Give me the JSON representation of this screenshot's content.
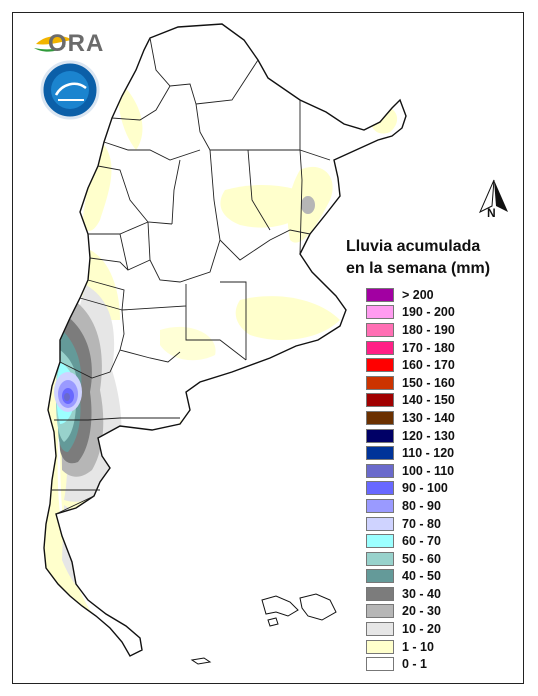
{
  "logo": {
    "text": "ORA"
  },
  "north_label": "N",
  "legend": {
    "title_line1": "Lluvia acumulada",
    "title_line2": "en la semana (mm)",
    "items": [
      {
        "label": "> 200",
        "color": "#a200a2"
      },
      {
        "label": "190 - 200",
        "color": "#ff9cf0"
      },
      {
        "label": "180 - 190",
        "color": "#ff6fb4"
      },
      {
        "label": "170 - 180",
        "color": "#ff1f86"
      },
      {
        "label": "160 - 170",
        "color": "#ff0000"
      },
      {
        "label": "150 - 160",
        "color": "#cc3300"
      },
      {
        "label": "140 - 150",
        "color": "#a10000"
      },
      {
        "label": "130 - 140",
        "color": "#6b3000"
      },
      {
        "label": "120 - 130",
        "color": "#000066"
      },
      {
        "label": "110 - 120",
        "color": "#003399"
      },
      {
        "label": "100 - 110",
        "color": "#6a6acc"
      },
      {
        "label": "90 - 100",
        "color": "#6868ff"
      },
      {
        "label": "80 - 90",
        "color": "#9a9aff"
      },
      {
        "label": "70 - 80",
        "color": "#cfd3ff"
      },
      {
        "label": "60 - 70",
        "color": "#9cffff"
      },
      {
        "label": "50 - 60",
        "color": "#98d2cc"
      },
      {
        "label": "40 - 50",
        "color": "#649a99"
      },
      {
        "label": "30 - 40",
        "color": "#7c7c7c"
      },
      {
        "label": "20 - 30",
        "color": "#b6b6b6"
      },
      {
        "label": "10 - 20",
        "color": "#e6e6e6"
      },
      {
        "label": "1 - 10",
        "color": "#ffffcc"
      },
      {
        "label": "0 - 1",
        "color": "#ffffff"
      }
    ]
  }
}
